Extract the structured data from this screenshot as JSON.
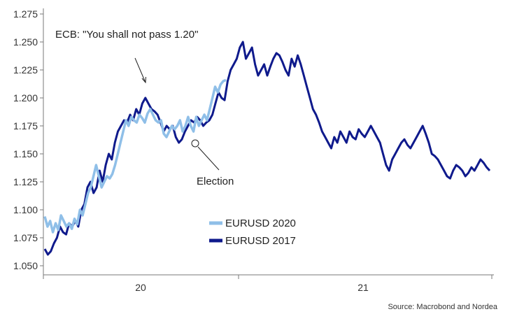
{
  "chart_data": {
    "type": "line",
    "title": "",
    "xlabel": "",
    "ylabel": "",
    "ylim": [
      1.05,
      1.275
    ],
    "y_ticks": [
      "1.050",
      "1.075",
      "1.100",
      "1.125",
      "1.150",
      "1.175",
      "1.200",
      "1.225",
      "1.250",
      "1.275"
    ],
    "x_tick_labels": [
      "20",
      "21"
    ],
    "grid": false,
    "legend_position": "center-bottom",
    "series": [
      {
        "name": "EURUSD 2020",
        "color": "#8fbfe8",
        "values": [
          1.094,
          1.085,
          1.09,
          1.08,
          1.088,
          1.082,
          1.095,
          1.09,
          1.085,
          1.088,
          1.083,
          1.092,
          1.087,
          1.1,
          1.095,
          1.105,
          1.115,
          1.12,
          1.13,
          1.14,
          1.13,
          1.12,
          1.125,
          1.13,
          1.128,
          1.132,
          1.14,
          1.15,
          1.16,
          1.17,
          1.18,
          1.175,
          1.183,
          1.18,
          1.178,
          1.185,
          1.182,
          1.178,
          1.186,
          1.19,
          1.185,
          1.18,
          1.178,
          1.18,
          1.168,
          1.165,
          1.17,
          1.175,
          1.172,
          1.175,
          1.18,
          1.17,
          1.175,
          1.183,
          1.175,
          1.17,
          1.183,
          1.175,
          1.18,
          1.185,
          1.18,
          1.19,
          1.2,
          1.21,
          1.205,
          1.212,
          1.215,
          1.216
        ]
      },
      {
        "name": "EURUSD 2017",
        "color": "#0f1a8c",
        "values": [
          1.065,
          1.06,
          1.063,
          1.07,
          1.075,
          1.085,
          1.08,
          1.078,
          1.088,
          1.085,
          1.09,
          1.085,
          1.1,
          1.105,
          1.12,
          1.125,
          1.115,
          1.12,
          1.135,
          1.125,
          1.14,
          1.15,
          1.145,
          1.16,
          1.17,
          1.175,
          1.18,
          1.178,
          1.185,
          1.18,
          1.19,
          1.185,
          1.195,
          1.2,
          1.195,
          1.19,
          1.188,
          1.185,
          1.178,
          1.17,
          1.175,
          1.172,
          1.175,
          1.165,
          1.16,
          1.163,
          1.17,
          1.175,
          1.18,
          1.178,
          1.183,
          1.18,
          1.175,
          1.178,
          1.18,
          1.185,
          1.195,
          1.205,
          1.2,
          1.198,
          1.215,
          1.225,
          1.23,
          1.235,
          1.245,
          1.25,
          1.235,
          1.24,
          1.245,
          1.23,
          1.22,
          1.225,
          1.23,
          1.22,
          1.228,
          1.235,
          1.24,
          1.238,
          1.232,
          1.225,
          1.22,
          1.235,
          1.228,
          1.238,
          1.23,
          1.22,
          1.21,
          1.2,
          1.19,
          1.185,
          1.178,
          1.17,
          1.165,
          1.16,
          1.155,
          1.165,
          1.16,
          1.17,
          1.165,
          1.16,
          1.17,
          1.165,
          1.163,
          1.172,
          1.168,
          1.165,
          1.17,
          1.175,
          1.17,
          1.165,
          1.16,
          1.15,
          1.14,
          1.135,
          1.145,
          1.15,
          1.155,
          1.16,
          1.163,
          1.158,
          1.155,
          1.16,
          1.165,
          1.17,
          1.175,
          1.168,
          1.16,
          1.15,
          1.148,
          1.145,
          1.14,
          1.135,
          1.13,
          1.128,
          1.135,
          1.14,
          1.138,
          1.135,
          1.13,
          1.133,
          1.138,
          1.135,
          1.14,
          1.145,
          1.142,
          1.138,
          1.135
        ]
      }
    ],
    "annotations": [
      {
        "text": "ECB: \"You shall not pass 1.20\""
      },
      {
        "text": "Election"
      }
    ],
    "source": "Source: Macrobond and Nordea"
  }
}
